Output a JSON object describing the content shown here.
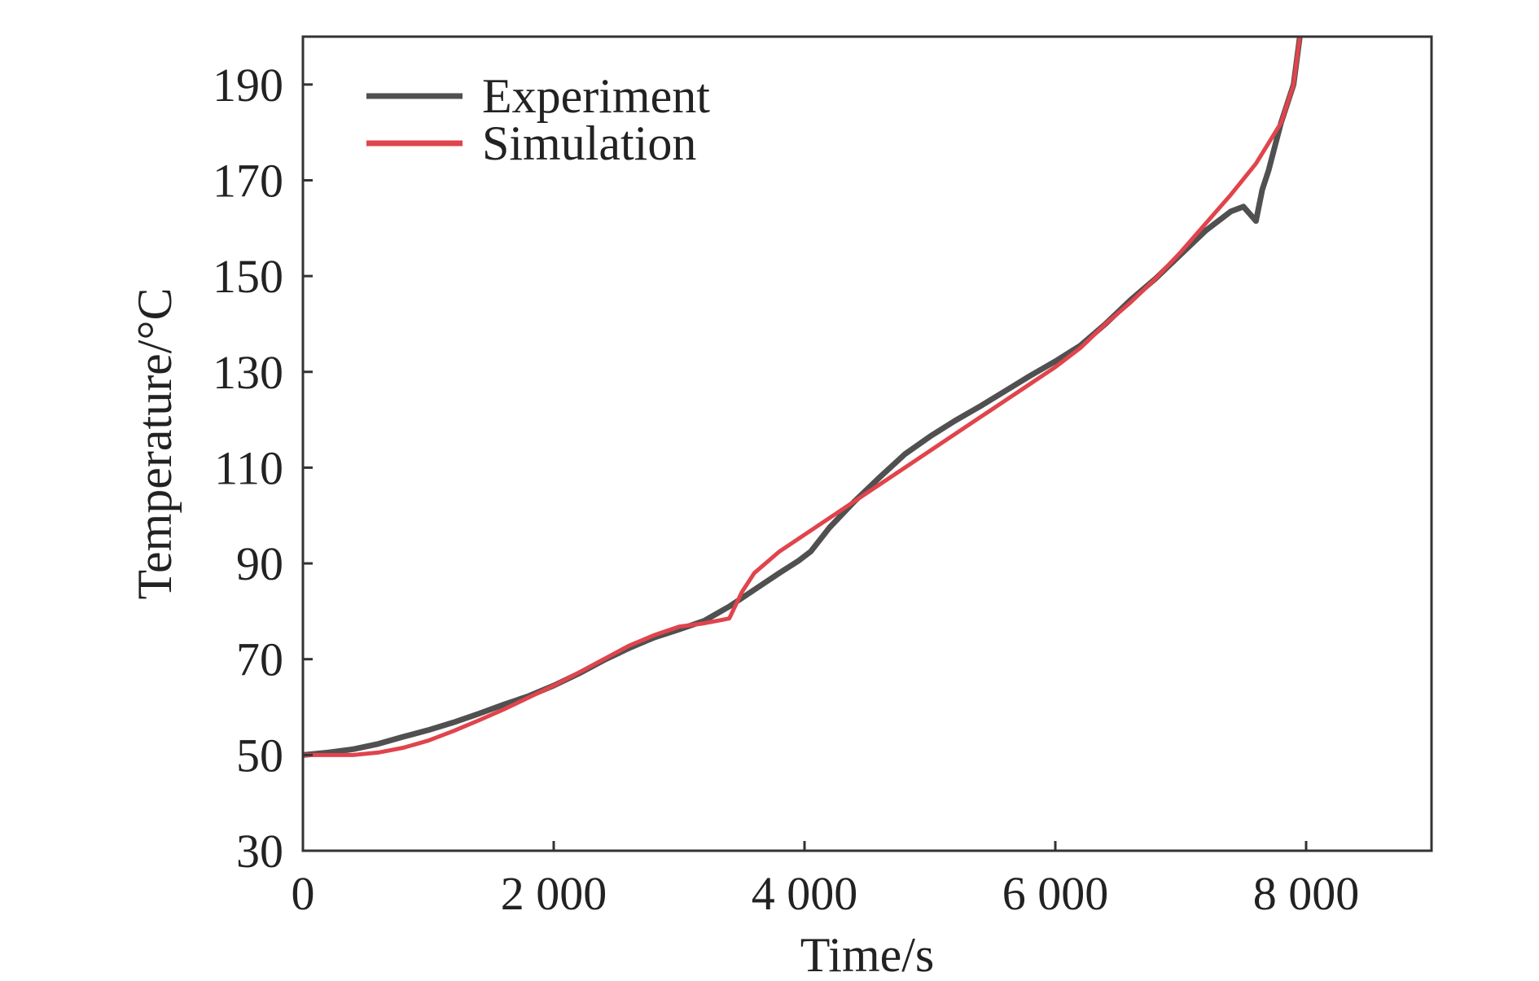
{
  "chart_data": {
    "type": "line",
    "title": "",
    "xlabel": "Time/s",
    "ylabel": "Temperature/°C",
    "xlim": [
      0,
      9000
    ],
    "ylim": [
      30,
      200
    ],
    "x_ticks": [
      0,
      2000,
      4000,
      6000,
      8000
    ],
    "x_tick_labels": [
      "0",
      "2 000",
      "4 000",
      "6 000",
      "8 000"
    ],
    "y_ticks": [
      30,
      50,
      70,
      90,
      110,
      130,
      150,
      170,
      190
    ],
    "y_tick_labels": [
      "30",
      "50",
      "70",
      "90",
      "110",
      "130",
      "150",
      "170",
      "190"
    ],
    "grid": false,
    "legend": {
      "placement": "top-left"
    },
    "series": [
      {
        "name": "Experiment",
        "color": "#505050",
        "x": [
          0,
          200,
          400,
          600,
          800,
          1000,
          1200,
          1400,
          1600,
          1800,
          2000,
          2200,
          2400,
          2600,
          2800,
          3000,
          3200,
          3400,
          3600,
          3800,
          3950,
          4050,
          4200,
          4400,
          4600,
          4800,
          5000,
          5200,
          5400,
          5600,
          5800,
          6000,
          6200,
          6400,
          6600,
          6800,
          7000,
          7200,
          7400,
          7500,
          7550,
          7600,
          7650,
          7700,
          7750,
          7800,
          7850,
          7900,
          7950
        ],
        "values": [
          50,
          50.5,
          51.2,
          52.3,
          53.8,
          55.2,
          56.8,
          58.6,
          60.5,
          62.3,
          64.5,
          67,
          69.8,
          72.3,
          74.5,
          76.2,
          78,
          81,
          84.5,
          88,
          90.5,
          92.5,
          97.5,
          103,
          108,
          112.8,
          116.5,
          119.8,
          122.8,
          126,
          129.2,
          132.2,
          135.5,
          140,
          145,
          149.5,
          154.5,
          159.5,
          163.5,
          164.5,
          163,
          161.5,
          168,
          172,
          177,
          182,
          186,
          190,
          200
        ]
      },
      {
        "name": "Simulation",
        "color": "#e0444c",
        "x": [
          0,
          200,
          400,
          600,
          800,
          1000,
          1200,
          1400,
          1600,
          1800,
          2000,
          2200,
          2400,
          2600,
          2800,
          3000,
          3200,
          3400,
          3500,
          3600,
          3800,
          4000,
          4200,
          4400,
          4600,
          4800,
          5000,
          5200,
          5400,
          5600,
          5800,
          6000,
          6200,
          6400,
          6600,
          6800,
          7000,
          7200,
          7400,
          7600,
          7800,
          7900,
          7950
        ],
        "values": [
          50,
          50,
          50,
          50.5,
          51.5,
          53,
          55,
          57.2,
          59.5,
          62,
          64.5,
          67.2,
          70,
          72.8,
          75,
          76.8,
          77.5,
          78.5,
          84,
          88,
          92.5,
          96,
          99.5,
          103,
          106.5,
          110,
          113.5,
          117,
          120.5,
          124,
          127.5,
          131,
          135,
          140,
          144.5,
          149.5,
          155,
          161,
          167,
          173.5,
          182,
          190,
          200
        ]
      }
    ]
  }
}
